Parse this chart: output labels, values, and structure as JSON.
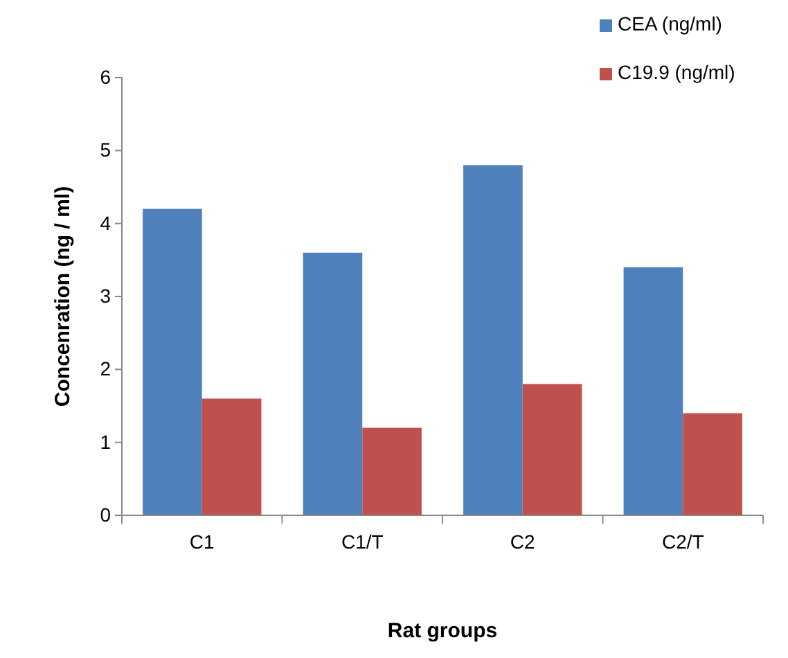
{
  "chart_data": {
    "type": "bar",
    "xlabel": "Rat groups",
    "ylabel": "Concenration (ng / ml)",
    "categories": [
      "C1",
      "C1/T",
      "C2",
      "C2/T"
    ],
    "series": [
      {
        "name": "CEA (ng/ml)",
        "color": "#4f81bd",
        "values": [
          4.2,
          3.6,
          4.8,
          3.4
        ]
      },
      {
        "name": "C19.9 (ng/ml)",
        "color": "#c0504d",
        "values": [
          1.6,
          1.2,
          1.8,
          1.4
        ]
      }
    ],
    "ylim": [
      0,
      6
    ],
    "yticks": [
      0,
      1,
      2,
      3,
      4,
      5,
      6
    ],
    "grid": false,
    "legend": "top right"
  }
}
